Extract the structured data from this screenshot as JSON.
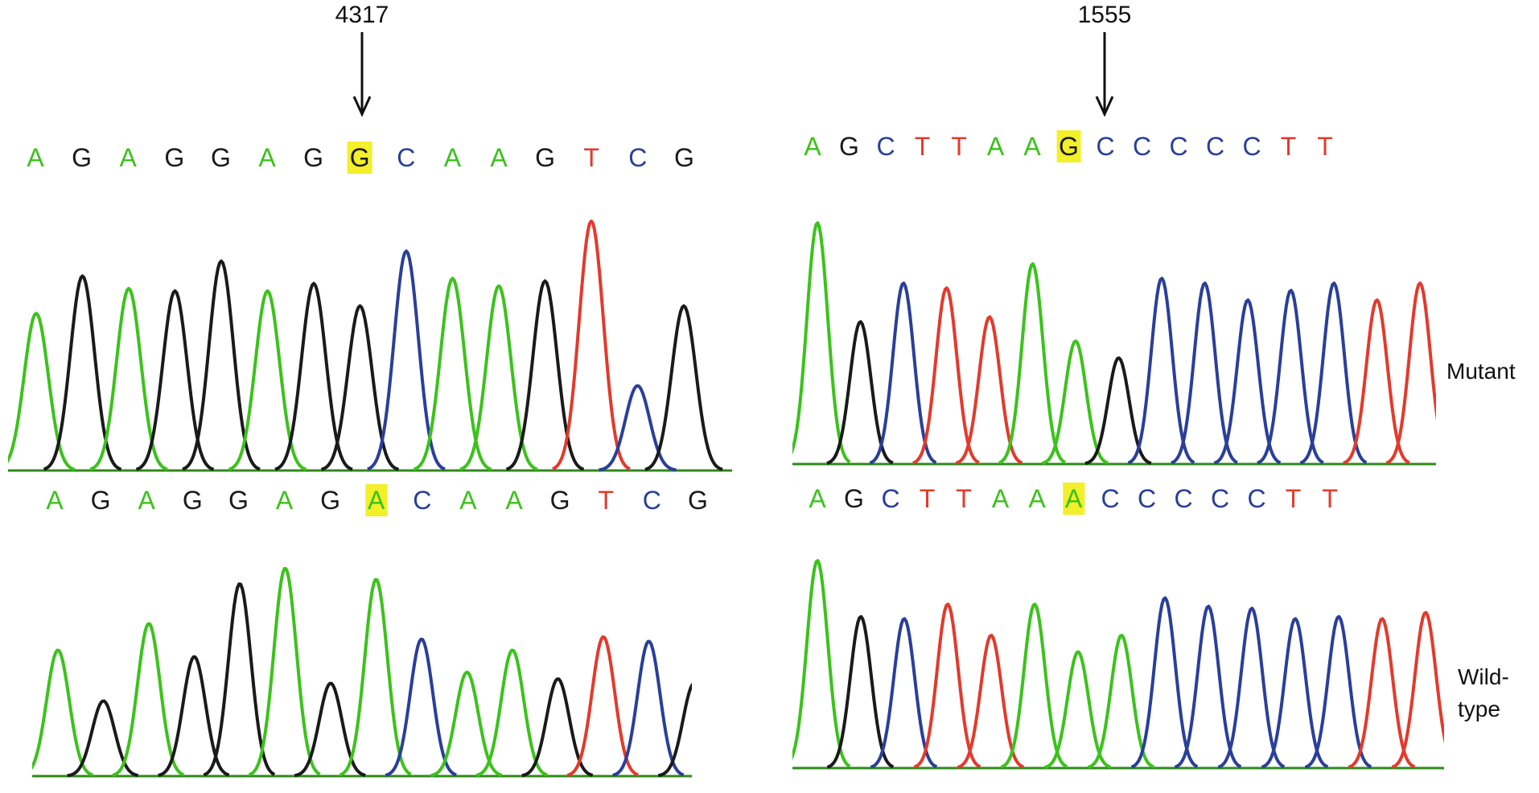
{
  "colors": {
    "A": "#3cc21c",
    "C": "#2a3f9a",
    "G": "#1a1a1a",
    "T": "#e23a2c",
    "highlight": "#f3ef2a",
    "background": "#ffffff"
  },
  "panels": [
    {
      "position_label": "4317",
      "mutant_sequence": [
        "A",
        "G",
        "A",
        "G",
        "G",
        "A",
        "G",
        "G",
        "C",
        "A",
        "A",
        "G",
        "T",
        "C",
        "G"
      ],
      "wildtype_sequence": [
        "A",
        "G",
        "A",
        "G",
        "G",
        "A",
        "G",
        "A",
        "C",
        "A",
        "A",
        "G",
        "T",
        "C",
        "G"
      ],
      "variant_index": 7,
      "mutant_peak_heights": [
        0.63,
        0.78,
        0.73,
        0.72,
        0.84,
        0.72,
        0.75,
        0.66,
        0.88,
        0.77,
        0.74,
        0.76,
        1.0,
        0.34,
        0.66
      ],
      "wildtype_peak_heights": [
        0.57,
        0.34,
        0.69,
        0.54,
        0.87,
        0.94,
        0.42,
        0.89,
        0.62,
        0.47,
        0.57,
        0.44,
        0.63,
        0.61,
        0.42
      ]
    },
    {
      "position_label": "1555",
      "mutant_sequence": [
        "A",
        "G",
        "C",
        "T",
        "T",
        "A",
        "A",
        "G",
        "C",
        "C",
        "C",
        "C",
        "C",
        "T",
        "T"
      ],
      "wildtype_sequence": [
        "A",
        "G",
        "C",
        "T",
        "T",
        "A",
        "A",
        "A",
        "C",
        "C",
        "C",
        "C",
        "C",
        "T",
        "T"
      ],
      "variant_index": 7,
      "mutant_peak_heights": [
        1.0,
        0.59,
        0.75,
        0.73,
        0.61,
        0.83,
        0.51,
        0.44,
        0.77,
        0.75,
        0.68,
        0.72,
        0.75,
        0.68,
        0.75
      ],
      "wildtype_peak_heights": [
        1.0,
        0.73,
        0.72,
        0.79,
        0.64,
        0.79,
        0.56,
        0.64,
        0.82,
        0.78,
        0.77,
        0.72,
        0.73,
        0.72,
        0.75
      ]
    }
  ],
  "row_labels": {
    "mutant": "Mutant",
    "wildtype_line1": "Wild-",
    "wildtype_line2": "type"
  }
}
